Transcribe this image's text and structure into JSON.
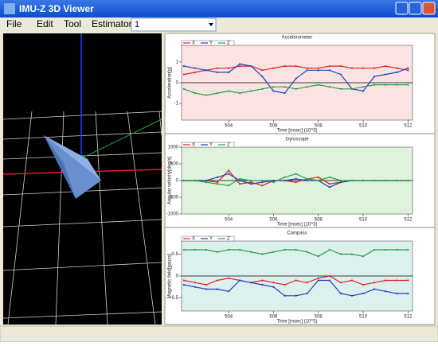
{
  "window": {
    "title": "IMU-Z 3D Viewer"
  },
  "menu": [
    "File",
    "Edit",
    "Tool",
    "Estimator"
  ],
  "combo": "1",
  "charts": [
    {
      "type": "line",
      "title": "Accelerometer",
      "x_label": "Time [msec] (10^3)",
      "y_label": "Acceleration[g]",
      "background": "#fbe3e3",
      "xlim": [
        501.9,
        512.2
      ],
      "xticks": [
        504,
        506,
        508,
        510,
        512
      ],
      "ylim": [
        -1.8,
        1.8
      ],
      "yticks": [
        -1,
        0,
        1
      ],
      "x": [
        502,
        502.5,
        503,
        503.5,
        504,
        504.5,
        505,
        505.5,
        506,
        506.5,
        507,
        507.5,
        508,
        508.5,
        509,
        509.5,
        510,
        510.5,
        511,
        511.5,
        512
      ],
      "series": [
        {
          "name": "X",
          "color": "#e02020",
          "values": [
            0.4,
            0.5,
            0.6,
            0.7,
            0.7,
            0.8,
            0.8,
            0.6,
            0.7,
            0.8,
            0.8,
            0.7,
            0.7,
            0.8,
            0.8,
            0.7,
            0.7,
            0.7,
            0.8,
            0.7,
            0.6
          ]
        },
        {
          "name": "Y",
          "color": "#2040c0",
          "values": [
            0.8,
            0.7,
            0.6,
            0.5,
            0.5,
            0.9,
            0.8,
            0.3,
            -0.4,
            -0.5,
            0.2,
            0.6,
            0.6,
            0.6,
            0.4,
            -0.3,
            -0.4,
            0.3,
            0.4,
            0.5,
            0.7
          ]
        },
        {
          "name": "Z",
          "color": "#20a040",
          "values": [
            -0.3,
            -0.5,
            -0.6,
            -0.5,
            -0.4,
            -0.5,
            -0.4,
            -0.3,
            -0.2,
            -0.2,
            -0.3,
            -0.2,
            -0.1,
            -0.2,
            -0.3,
            -0.3,
            -0.2,
            -0.1,
            -0.1,
            -0.1,
            -0.1
          ]
        }
      ]
    },
    {
      "type": "line",
      "title": "Gyroscope",
      "x_label": "Time [msec] (10^3)",
      "y_label": "Angular velocity[deg/s]",
      "background": "#dff2dc",
      "xlim": [
        501.9,
        512.2
      ],
      "xticks": [
        504,
        506,
        508,
        510,
        512
      ],
      "ylim": [
        -1000,
        1000
      ],
      "yticks": [
        -1000,
        -500,
        0,
        500,
        1000
      ],
      "x": [
        502,
        502.5,
        503,
        503.5,
        504,
        504.5,
        505,
        505.5,
        506,
        506.5,
        507,
        507.5,
        508,
        508.5,
        509,
        509.5,
        510,
        510.5,
        511,
        511.5,
        512
      ],
      "series": [
        {
          "name": "X",
          "color": "#e02020",
          "values": [
            0,
            0,
            0,
            -50,
            300,
            -100,
            -50,
            -150,
            0,
            0,
            -50,
            50,
            100,
            -100,
            -50,
            0,
            0,
            0,
            0,
            0,
            0
          ]
        },
        {
          "name": "Y",
          "color": "#2040c0",
          "values": [
            0,
            0,
            0,
            100,
            200,
            0,
            -100,
            -50,
            0,
            0,
            50,
            0,
            0,
            -200,
            -50,
            0,
            0,
            0,
            0,
            0,
            0
          ]
        },
        {
          "name": "Z",
          "color": "#20a040",
          "values": [
            0,
            0,
            -50,
            -100,
            -150,
            50,
            0,
            0,
            -50,
            100,
            200,
            50,
            0,
            100,
            0,
            0,
            0,
            0,
            0,
            0,
            0
          ]
        }
      ]
    },
    {
      "type": "line",
      "title": "Compass",
      "x_label": "Time [msec] (10^3)",
      "y_label": "Magnetic field[gauss]",
      "background": "#dcf0ee",
      "xlim": [
        501.9,
        512.2
      ],
      "xticks": [
        504,
        506,
        508,
        510,
        512
      ],
      "ylim": [
        -0.8,
        0.8
      ],
      "yticks": [
        -0.5,
        0,
        0.5
      ],
      "x": [
        502,
        502.5,
        503,
        503.5,
        504,
        504.5,
        505,
        505.5,
        506,
        506.5,
        507,
        507.5,
        508,
        508.5,
        509,
        509.5,
        510,
        510.5,
        511,
        511.5,
        512
      ],
      "series": [
        {
          "name": "X",
          "color": "#e02020",
          "values": [
            -0.1,
            -0.15,
            -0.2,
            -0.1,
            -0.05,
            -0.1,
            -0.15,
            -0.1,
            -0.15,
            -0.2,
            -0.1,
            -0.15,
            -0.05,
            0,
            -0.15,
            -0.1,
            -0.2,
            -0.15,
            -0.1,
            -0.1,
            -0.1
          ]
        },
        {
          "name": "Y",
          "color": "#2040c0",
          "values": [
            -0.2,
            -0.25,
            -0.3,
            -0.3,
            -0.35,
            -0.1,
            -0.15,
            -0.2,
            -0.25,
            -0.45,
            -0.45,
            -0.4,
            -0.1,
            -0.1,
            -0.4,
            -0.45,
            -0.4,
            -0.3,
            -0.35,
            -0.4,
            -0.4
          ]
        },
        {
          "name": "Z",
          "color": "#20a040",
          "values": [
            0.6,
            0.6,
            0.6,
            0.55,
            0.6,
            0.6,
            0.55,
            0.5,
            0.55,
            0.6,
            0.6,
            0.55,
            0.45,
            0.6,
            0.5,
            0.5,
            0.45,
            0.6,
            0.6,
            0.6,
            0.6
          ]
        }
      ]
    }
  ]
}
